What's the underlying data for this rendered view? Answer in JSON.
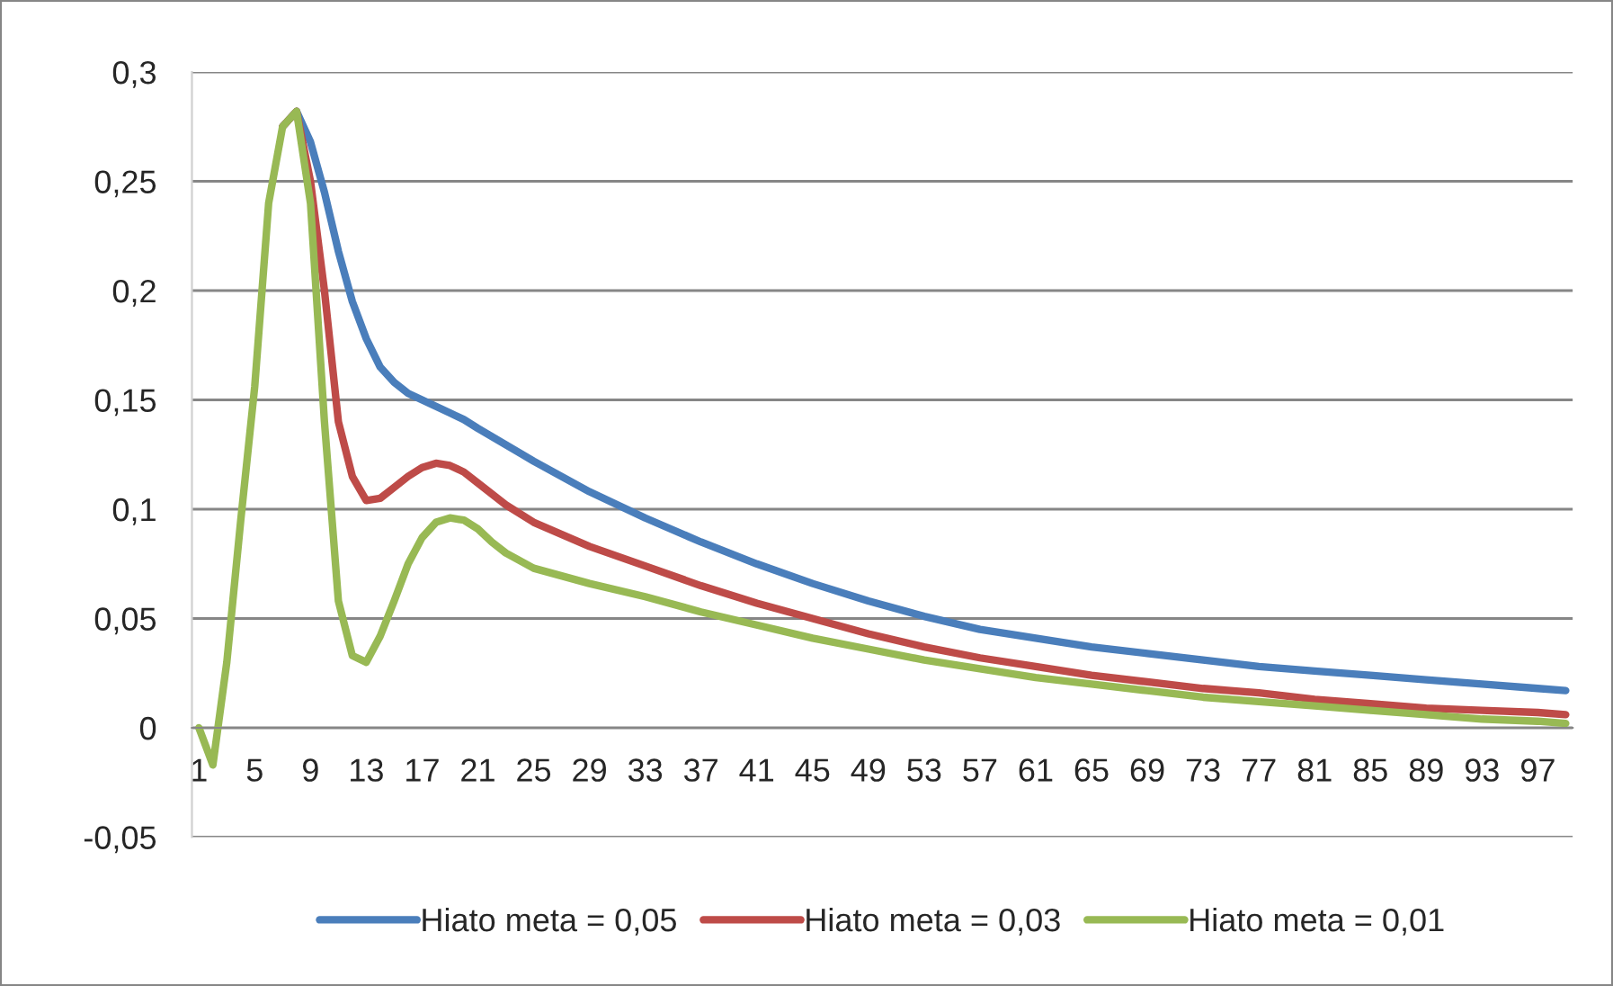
{
  "chart_data": {
    "type": "line",
    "xlim": [
      0.5,
      99.5
    ],
    "xticks": [
      1,
      5,
      9,
      13,
      17,
      21,
      25,
      29,
      33,
      37,
      41,
      45,
      49,
      53,
      57,
      61,
      65,
      69,
      73,
      77,
      81,
      85,
      89,
      93,
      97
    ],
    "ylim": [
      -0.05,
      0.3
    ],
    "yticks": [
      {
        "value": -0.05,
        "label": "-0,05"
      },
      {
        "value": 0,
        "label": "0"
      },
      {
        "value": 0.05,
        "label": "0,05"
      },
      {
        "value": 0.1,
        "label": "0,1"
      },
      {
        "value": 0.15,
        "label": "0,15"
      },
      {
        "value": 0.2,
        "label": "0,2"
      },
      {
        "value": 0.25,
        "label": "0,25"
      },
      {
        "value": 0.3,
        "label": "0,3"
      }
    ],
    "grid": "y",
    "legend": "bottom",
    "marker": "none",
    "line_style": "solid",
    "series": [
      {
        "name": "Hiato meta = 0,05",
        "color": "#4a7ebb",
        "x": [
          7,
          8,
          9,
          10,
          11,
          12,
          13,
          14,
          15,
          16,
          17,
          18,
          19,
          20,
          21,
          25,
          29,
          33,
          37,
          41,
          45,
          49,
          53,
          57,
          61,
          65,
          69,
          73,
          77,
          81,
          85,
          89,
          93,
          97,
          99
        ],
        "values": [
          0.275,
          0.282,
          0.268,
          0.245,
          0.218,
          0.195,
          0.178,
          0.165,
          0.158,
          0.153,
          0.15,
          0.147,
          0.144,
          0.141,
          0.137,
          0.122,
          0.108,
          0.096,
          0.085,
          0.075,
          0.066,
          0.058,
          0.051,
          0.045,
          0.041,
          0.037,
          0.034,
          0.031,
          0.028,
          0.026,
          0.024,
          0.022,
          0.02,
          0.018,
          0.017
        ]
      },
      {
        "name": "Hiato meta = 0,03",
        "color": "#be4b48",
        "x": [
          7,
          8,
          9,
          10,
          11,
          12,
          13,
          14,
          15,
          16,
          17,
          18,
          19,
          20,
          21,
          23,
          25,
          29,
          33,
          37,
          41,
          45,
          49,
          53,
          57,
          61,
          65,
          69,
          73,
          77,
          81,
          85,
          89,
          93,
          97,
          99
        ],
        "values": [
          0.275,
          0.282,
          0.25,
          0.2,
          0.14,
          0.115,
          0.104,
          0.105,
          0.11,
          0.115,
          0.119,
          0.121,
          0.12,
          0.117,
          0.112,
          0.102,
          0.094,
          0.083,
          0.074,
          0.065,
          0.057,
          0.05,
          0.043,
          0.037,
          0.032,
          0.028,
          0.024,
          0.021,
          0.018,
          0.016,
          0.013,
          0.011,
          0.009,
          0.008,
          0.007,
          0.006
        ]
      },
      {
        "name": "Hiato meta = 0,01",
        "color": "#98b954",
        "x": [
          1,
          2,
          3,
          4,
          5,
          6,
          7,
          8,
          9,
          10,
          11,
          12,
          13,
          14,
          15,
          16,
          17,
          18,
          19,
          20,
          21,
          22,
          23,
          25,
          29,
          33,
          37,
          41,
          45,
          49,
          53,
          57,
          61,
          65,
          69,
          73,
          77,
          81,
          85,
          89,
          93,
          97,
          99
        ],
        "values": [
          0,
          -0.017,
          0.03,
          0.095,
          0.156,
          0.24,
          0.275,
          0.282,
          0.24,
          0.14,
          0.058,
          0.033,
          0.03,
          0.042,
          0.058,
          0.075,
          0.087,
          0.094,
          0.096,
          0.095,
          0.091,
          0.085,
          0.08,
          0.073,
          0.066,
          0.06,
          0.053,
          0.047,
          0.041,
          0.036,
          0.031,
          0.027,
          0.023,
          0.02,
          0.017,
          0.014,
          0.012,
          0.01,
          0.008,
          0.006,
          0.004,
          0.003,
          0.002
        ]
      }
    ]
  }
}
